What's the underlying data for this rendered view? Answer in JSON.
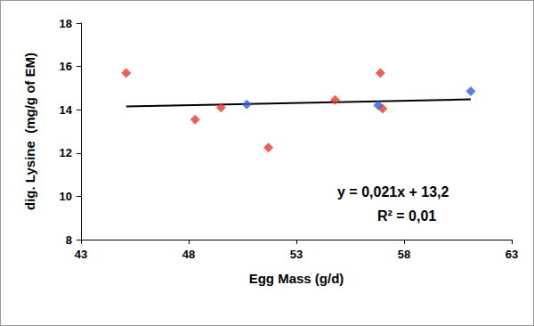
{
  "chart_data": {
    "type": "scatter",
    "x_label": "Egg Mass (g/d)",
    "y_label": "dig. Lysine  (mg/g of EM)",
    "xlim": [
      43,
      63
    ],
    "xticks": [
      43,
      48,
      53,
      58,
      63
    ],
    "ylim": [
      8,
      18
    ],
    "yticks": [
      8,
      10,
      12,
      14,
      16,
      18
    ],
    "grid": false,
    "series": [
      {
        "type": "scatter",
        "color": "#e8382a",
        "marker": "diamond",
        "x": [
          45.1,
          48.3,
          49.5,
          51.7,
          54.8,
          56.9,
          57.0
        ],
        "values": [
          15.7,
          13.55,
          14.1,
          12.25,
          14.45,
          15.7,
          14.05
        ]
      },
      {
        "type": "scatter",
        "color": "#2f5fd6",
        "marker": "diamond",
        "x": [
          50.7,
          56.8,
          61.1
        ],
        "values": [
          14.25,
          14.2,
          14.85
        ]
      },
      {
        "type": "line",
        "color": "#000000",
        "line_style": "solid",
        "x": [
          45.1,
          61.1
        ],
        "values": [
          14.15,
          14.48
        ]
      }
    ],
    "annotations": [
      "y = 0,021x + 13,2",
      "R² = 0,01"
    ]
  }
}
